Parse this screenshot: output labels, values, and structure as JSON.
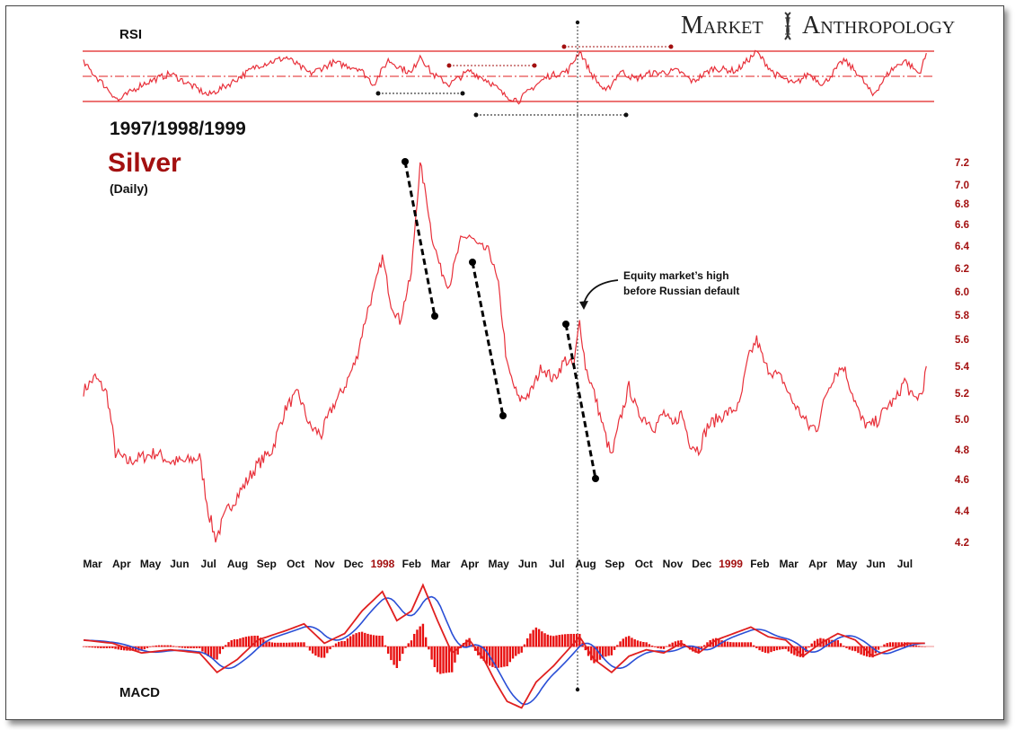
{
  "brand": {
    "word1_initial": "M",
    "word1_rest": "ARKET",
    "word2_initial": "A",
    "word2_rest": "NTHROPOLOGY",
    "logo_icon": "dna-helix-icon"
  },
  "labels": {
    "rsi": "RSI",
    "years": "1997/1998/1999",
    "asset": "Silver",
    "frequency": "(Daily)",
    "macd": "MACD",
    "annotation_line1": "Equity market’s high",
    "annotation_line2": "before Russian default"
  },
  "colors": {
    "price_line": "#e8303a",
    "accent_dark_red": "#a31010",
    "rsi_band": "#e02020",
    "macd_line": "#e02020",
    "signal_line": "#2a4fd6",
    "histogram": "#e81010",
    "trendline": "#000000"
  },
  "chart_data": [
    {
      "type": "line",
      "name": "price",
      "title": "Silver",
      "subtitle": "(Daily)",
      "y_ticks": [
        4.2,
        4.4,
        4.6,
        4.8,
        5.0,
        5.2,
        5.4,
        5.6,
        5.8,
        6.0,
        6.2,
        6.4,
        6.6,
        6.8,
        7.0,
        7.2
      ],
      "y_scale": "log",
      "ylim": [
        4.2,
        7.2
      ],
      "x_labels": [
        {
          "label": "Mar",
          "year": false
        },
        {
          "label": "Apr",
          "year": false
        },
        {
          "label": "May",
          "year": false
        },
        {
          "label": "Jun",
          "year": false
        },
        {
          "label": "Jul",
          "year": false
        },
        {
          "label": "Aug",
          "year": false
        },
        {
          "label": "Sep",
          "year": false
        },
        {
          "label": "Oct",
          "year": false
        },
        {
          "label": "Nov",
          "year": false
        },
        {
          "label": "Dec",
          "year": false
        },
        {
          "label": "1998",
          "year": true
        },
        {
          "label": "Feb",
          "year": false
        },
        {
          "label": "Mar",
          "year": false
        },
        {
          "label": "Apr",
          "year": false
        },
        {
          "label": "May",
          "year": false
        },
        {
          "label": "Jun",
          "year": false
        },
        {
          "label": "Jul",
          "year": false
        },
        {
          "label": "Aug",
          "year": false
        },
        {
          "label": "Sep",
          "year": false
        },
        {
          "label": "Oct",
          "year": false
        },
        {
          "label": "Nov",
          "year": false
        },
        {
          "label": "Dec",
          "year": false
        },
        {
          "label": "1999",
          "year": true
        },
        {
          "label": "Feb",
          "year": false
        },
        {
          "label": "Mar",
          "year": false
        },
        {
          "label": "Apr",
          "year": false
        },
        {
          "label": "May",
          "year": false
        },
        {
          "label": "Jun",
          "year": false
        },
        {
          "label": "Jul",
          "year": false
        }
      ],
      "series_keypoints": [
        [
          0,
          5.22
        ],
        [
          0.4,
          5.32
        ],
        [
          0.8,
          5.2
        ],
        [
          1.1,
          4.78
        ],
        [
          1.5,
          4.72
        ],
        [
          2,
          4.75
        ],
        [
          2.5,
          4.78
        ],
        [
          3,
          4.72
        ],
        [
          3.5,
          4.72
        ],
        [
          4,
          4.75
        ],
        [
          4.3,
          4.4
        ],
        [
          4.55,
          4.22
        ],
        [
          5,
          4.42
        ],
        [
          5.5,
          4.55
        ],
        [
          6,
          4.7
        ],
        [
          6.5,
          4.8
        ],
        [
          7,
          5.1
        ],
        [
          7.4,
          5.2
        ],
        [
          7.8,
          4.95
        ],
        [
          8.2,
          4.9
        ],
        [
          8.6,
          5.1
        ],
        [
          9,
          5.25
        ],
        [
          9.4,
          5.45
        ],
        [
          9.8,
          5.85
        ],
        [
          10,
          6.0
        ],
        [
          10.3,
          6.3
        ],
        [
          10.6,
          5.9
        ],
        [
          10.9,
          5.75
        ],
        [
          11.3,
          6.15
        ],
        [
          11.6,
          7.2
        ],
        [
          11.8,
          6.9
        ],
        [
          12,
          6.5
        ],
        [
          12.3,
          6.2
        ],
        [
          12.6,
          6.05
        ],
        [
          13,
          6.45
        ],
        [
          13.3,
          6.5
        ],
        [
          13.6,
          6.4
        ],
        [
          14,
          6.35
        ],
        [
          14.3,
          6.05
        ],
        [
          14.6,
          5.4
        ],
        [
          15,
          5.15
        ],
        [
          15.4,
          5.2
        ],
        [
          15.8,
          5.4
        ],
        [
          16.2,
          5.3
        ],
        [
          16.6,
          5.45
        ],
        [
          16.9,
          5.4
        ],
        [
          17.1,
          5.75
        ],
        [
          17.3,
          5.4
        ],
        [
          17.6,
          5.2
        ],
        [
          17.9,
          4.95
        ],
        [
          18.2,
          4.75
        ],
        [
          18.5,
          5.0
        ],
        [
          18.8,
          5.25
        ],
        [
          19.1,
          5.05
        ],
        [
          19.4,
          5.0
        ],
        [
          19.7,
          4.95
        ],
        [
          20,
          5.05
        ],
        [
          20.3,
          4.95
        ],
        [
          20.6,
          5.05
        ],
        [
          20.9,
          4.85
        ],
        [
          21.2,
          4.8
        ],
        [
          21.5,
          4.95
        ],
        [
          21.8,
          5.0
        ],
        [
          22.2,
          5.05
        ],
        [
          22.6,
          5.1
        ],
        [
          22.9,
          5.45
        ],
        [
          23.2,
          5.6
        ],
        [
          23.5,
          5.4
        ],
        [
          23.8,
          5.35
        ],
        [
          24.1,
          5.3
        ],
        [
          24.4,
          5.15
        ],
        [
          24.7,
          5.05
        ],
        [
          25,
          4.95
        ],
        [
          25.3,
          4.95
        ],
        [
          25.6,
          5.2
        ],
        [
          25.9,
          5.35
        ],
        [
          26.2,
          5.4
        ],
        [
          26.5,
          5.2
        ],
        [
          26.8,
          5.0
        ],
        [
          27.1,
          4.95
        ],
        [
          27.4,
          5.0
        ],
        [
          27.7,
          5.1
        ],
        [
          28,
          5.15
        ],
        [
          28.3,
          5.3
        ],
        [
          28.6,
          5.15
        ],
        [
          28.9,
          5.2
        ],
        [
          29.1,
          5.45
        ]
      ],
      "annotation": "Equity market’s high before Russian default"
    },
    {
      "type": "line",
      "name": "RSI",
      "title": "RSI",
      "bands": [
        "upper",
        "middle",
        "lower"
      ],
      "series_keypoints": [
        [
          0,
          0.5
        ],
        [
          1.2,
          -0.9
        ],
        [
          2,
          -0.3
        ],
        [
          3,
          0.1
        ],
        [
          4.3,
          -0.7
        ],
        [
          5,
          -0.3
        ],
        [
          6,
          0.4
        ],
        [
          7,
          0.7
        ],
        [
          7.8,
          0.1
        ],
        [
          8.6,
          0.5
        ],
        [
          9.5,
          0.3
        ],
        [
          10,
          -0.3
        ],
        [
          10.5,
          0.6
        ],
        [
          11.3,
          0.1
        ],
        [
          11.6,
          0.8
        ],
        [
          12,
          0.1
        ],
        [
          12.6,
          -0.3
        ],
        [
          13.3,
          0.2
        ],
        [
          14,
          -0.2
        ],
        [
          14.5,
          -0.7
        ],
        [
          15,
          -0.9
        ],
        [
          15.5,
          -0.4
        ],
        [
          16,
          0
        ],
        [
          16.7,
          0.2
        ],
        [
          17.1,
          0.95
        ],
        [
          17.5,
          0.1
        ],
        [
          18,
          -0.6
        ],
        [
          18.5,
          0.2
        ],
        [
          19,
          -0.1
        ],
        [
          19.5,
          0.1
        ],
        [
          20.5,
          0.2
        ],
        [
          21,
          -0.2
        ],
        [
          21.7,
          0.3
        ],
        [
          22.5,
          0.2
        ],
        [
          23.2,
          0.9
        ],
        [
          23.8,
          0.1
        ],
        [
          24.5,
          -0.3
        ],
        [
          25,
          0.1
        ],
        [
          25.5,
          -0.3
        ],
        [
          26.2,
          0.6
        ],
        [
          26.7,
          0.1
        ],
        [
          27.2,
          -0.7
        ],
        [
          27.8,
          0.2
        ],
        [
          28.3,
          0.6
        ],
        [
          28.8,
          0.1
        ],
        [
          29.1,
          0.95
        ]
      ]
    },
    {
      "type": "line",
      "name": "MACD",
      "title": "MACD",
      "series_keypoints": [
        [
          0,
          0.1
        ],
        [
          1,
          0.05
        ],
        [
          2,
          -0.1
        ],
        [
          3,
          -0.05
        ],
        [
          4,
          -0.1
        ],
        [
          4.6,
          -0.4
        ],
        [
          5.3,
          -0.2
        ],
        [
          6,
          0.1
        ],
        [
          7,
          0.25
        ],
        [
          7.6,
          0.35
        ],
        [
          8.3,
          0.05
        ],
        [
          9,
          0.2
        ],
        [
          9.6,
          0.55
        ],
        [
          10.3,
          0.85
        ],
        [
          10.8,
          0.4
        ],
        [
          11.3,
          0.55
        ],
        [
          11.7,
          0.95
        ],
        [
          12.2,
          0.4
        ],
        [
          12.7,
          -0.1
        ],
        [
          13.3,
          0.1
        ],
        [
          13.8,
          -0.2
        ],
        [
          14.2,
          -0.55
        ],
        [
          14.6,
          -0.85
        ],
        [
          15.1,
          -0.95
        ],
        [
          15.6,
          -0.55
        ],
        [
          16.2,
          -0.3
        ],
        [
          16.7,
          -0.05
        ],
        [
          17.1,
          0.15
        ],
        [
          17.6,
          -0.2
        ],
        [
          18.2,
          -0.4
        ],
        [
          18.8,
          -0.15
        ],
        [
          19.4,
          -0.05
        ],
        [
          20,
          -0.1
        ],
        [
          20.6,
          0.05
        ],
        [
          21.2,
          -0.1
        ],
        [
          21.8,
          0.1
        ],
        [
          22.4,
          0.2
        ],
        [
          23,
          0.3
        ],
        [
          23.6,
          0.15
        ],
        [
          24.2,
          0.1
        ],
        [
          24.8,
          -0.15
        ],
        [
          25.4,
          0.05
        ],
        [
          26,
          0.2
        ],
        [
          26.6,
          0.1
        ],
        [
          27.2,
          -0.15
        ],
        [
          27.8,
          -0.05
        ],
        [
          28.4,
          0.05
        ],
        [
          29.1,
          0.05
        ]
      ]
    }
  ]
}
